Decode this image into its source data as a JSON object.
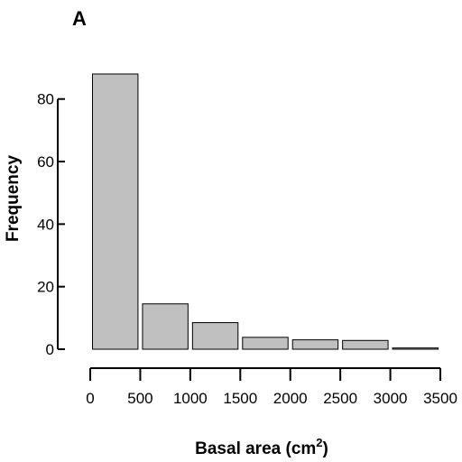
{
  "chart_data": {
    "type": "bar",
    "panel_label": "A",
    "title": "",
    "xlabel": "Basal area (cm",
    "xlabel_superscript": "2",
    "xlabel_suffix": ")",
    "ylabel": "Frequency",
    "bins": [
      {
        "start": 0,
        "end": 500,
        "value": 88
      },
      {
        "start": 500,
        "end": 1000,
        "value": 14.5
      },
      {
        "start": 1000,
        "end": 1500,
        "value": 8.5
      },
      {
        "start": 1500,
        "end": 2000,
        "value": 3.8
      },
      {
        "start": 2000,
        "end": 2500,
        "value": 3
      },
      {
        "start": 2500,
        "end": 3000,
        "value": 2.8
      },
      {
        "start": 3000,
        "end": 3500,
        "value": 0.4
      }
    ],
    "xlim": [
      0,
      3500
    ],
    "ylim": [
      0,
      88
    ],
    "xticks": [
      0,
      500,
      1000,
      1500,
      2000,
      2500,
      3000,
      3500
    ],
    "xtick_labels": [
      "0",
      "500",
      "1000",
      "1500",
      "2000",
      "2500",
      "3000",
      "3500"
    ],
    "yticks": [
      0,
      20,
      40,
      60,
      80
    ],
    "ytick_labels": [
      "0",
      "20",
      "40",
      "60",
      "80"
    ],
    "bar_color": "#c0c0c0",
    "grid": false,
    "legend": "none"
  }
}
